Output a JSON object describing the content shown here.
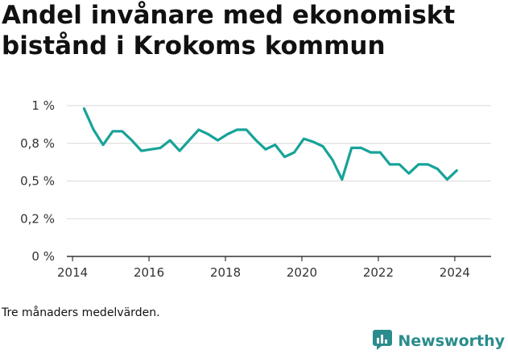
{
  "title": "Andel invånare med ekonomiskt bistånd i Krokoms kommun",
  "note": "Tre månaders medelvärden.",
  "brand": {
    "name": "Newsworthy",
    "icon": "bar-chart-logo-icon"
  },
  "colors": {
    "line": "#17a398",
    "grid": "#d9d9d9",
    "axis": "#333333",
    "brand": "#2a8c8c"
  },
  "chart_data": {
    "type": "line",
    "title": "Andel invånare med ekonomiskt bistånd i Krokoms kommun",
    "xlabel": "",
    "ylabel": "",
    "xlim": [
      2013.85,
      2024.95
    ],
    "ylim": [
      0,
      1
    ],
    "x_ticks": [
      {
        "value": 2014,
        "label": "2014"
      },
      {
        "value": 2016,
        "label": "2016"
      },
      {
        "value": 2018,
        "label": "2018"
      },
      {
        "value": 2020,
        "label": "2020"
      },
      {
        "value": 2022,
        "label": "2022"
      },
      {
        "value": 2024,
        "label": "2024"
      }
    ],
    "y_ticks": [
      {
        "value": 0,
        "label": "0 %"
      },
      {
        "value": 0.25,
        "label": "0,2 %"
      },
      {
        "value": 0.5,
        "label": "0,5 %"
      },
      {
        "value": 0.75,
        "label": "0,8 %"
      },
      {
        "value": 1,
        "label": "1 %"
      }
    ],
    "grid": true,
    "series": [
      {
        "x": [
          2014.3,
          2014.55,
          2014.8,
          2015.05,
          2015.3,
          2015.55,
          2015.8,
          2016.05,
          2016.3,
          2016.55,
          2016.8,
          2017.05,
          2017.3,
          2017.55,
          2017.8,
          2018.05,
          2018.3,
          2018.55,
          2018.8,
          2019.05,
          2019.3,
          2019.55,
          2019.8,
          2020.05,
          2020.3,
          2020.55,
          2020.8,
          2021.05,
          2021.3,
          2021.55,
          2021.8,
          2022.05,
          2022.3,
          2022.55,
          2022.8,
          2023.05,
          2023.3,
          2023.55,
          2023.8,
          2024.05
        ],
        "y": [
          0.98,
          0.84,
          0.74,
          0.83,
          0.83,
          0.77,
          0.7,
          0.71,
          0.72,
          0.77,
          0.7,
          0.77,
          0.84,
          0.81,
          0.77,
          0.81,
          0.84,
          0.84,
          0.77,
          0.71,
          0.74,
          0.66,
          0.69,
          0.78,
          0.76,
          0.73,
          0.64,
          0.51,
          0.72,
          0.72,
          0.69,
          0.69,
          0.61,
          0.61,
          0.55,
          0.61,
          0.61,
          0.58,
          0.51,
          0.57
        ]
      }
    ]
  }
}
